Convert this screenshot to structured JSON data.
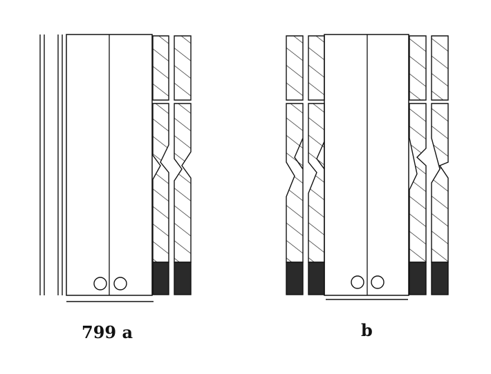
{
  "figure": {
    "label_a": "799 a",
    "label_b": "b"
  },
  "colors": {
    "ink": "#111111",
    "fill_black": "#2a2a2a",
    "background": "#ffffff"
  }
}
